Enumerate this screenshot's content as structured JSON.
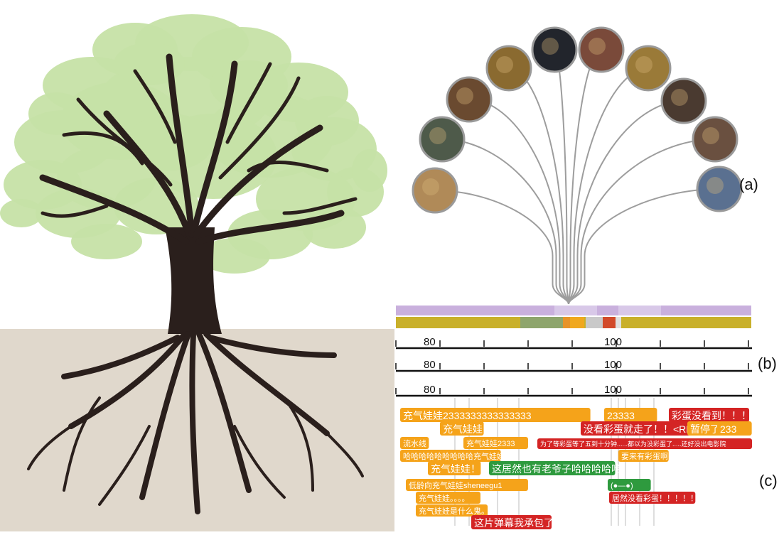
{
  "panel_labels": [
    "(a)",
    "(b)",
    "(c)"
  ],
  "timeline": {
    "tick_labels": [
      "80",
      "100"
    ]
  },
  "comments": [
    {
      "text": "充气娃娃2333333333333333",
      "color": "orange",
      "row": 0,
      "col": 0
    },
    {
      "text": "23333",
      "color": "orange",
      "row": 0,
      "col": 1
    },
    {
      "text": "彩蛋没看到！！！",
      "color": "red",
      "row": 0,
      "col": 2
    },
    {
      "text": "充气娃娃",
      "color": "orange",
      "row": 1,
      "col": 0
    },
    {
      "text": "没看彩蛋就走了！！<REF>",
      "color": "red",
      "row": 1,
      "col": 1
    },
    {
      "text": "暂停了",
      "color": "orange",
      "row": 1,
      "col": 2
    },
    {
      "text": "233",
      "color": "orange",
      "row": 1,
      "col": 3
    },
    {
      "text": "流水线",
      "color": "orange",
      "row": 2,
      "col": 0
    },
    {
      "text": "充气娃娃2333",
      "color": "orange",
      "row": 2,
      "col": 1
    },
    {
      "text": "为了等彩蛋等了五到十分钟......都以为没彩蛋了.....还好没出电影院",
      "color": "red",
      "row": 2,
      "col": 2
    },
    {
      "text": "哈哈哈哈哈哈哈哈哈充气娃娃",
      "color": "orange",
      "row": 3,
      "col": 0
    },
    {
      "text": "要来有彩蛋啊",
      "color": "orange",
      "row": 3,
      "col": 1
    },
    {
      "text": "充气娃娃！",
      "color": "orange",
      "row": 4,
      "col": 0
    },
    {
      "text": "这居然也有老爷子哈哈哈哈哈",
      "color": "green",
      "row": 4,
      "col": 1
    },
    {
      "text": "低龄向充气娃娃sheneegu1",
      "color": "orange",
      "row": 5,
      "col": 0
    },
    {
      "text": "(●—●)",
      "color": "green",
      "row": 5,
      "col": 1
    },
    {
      "text": "充气娃娃。。。。",
      "color": "orange",
      "row": 6,
      "col": 0
    },
    {
      "text": "居然没看彩蛋！！！！！",
      "color": "red",
      "row": 6,
      "col": 1
    },
    {
      "text": "充气娃娃是什么鬼。",
      "color": "orange",
      "row": 7,
      "col": 0
    },
    {
      "text": "这片弹幕我承包了",
      "color": "red",
      "row": 8,
      "col": 0
    }
  ],
  "colors": {
    "orange": "#f5a31a",
    "red": "#d42424",
    "green": "#2e9a3e",
    "trunk": "#2a1f1c",
    "leaf": "#c6e2a7",
    "ground": "#e0d8cc",
    "lavender": "#c9b0dd",
    "olive": "#c9b02a",
    "sage": "#8ea56c"
  }
}
